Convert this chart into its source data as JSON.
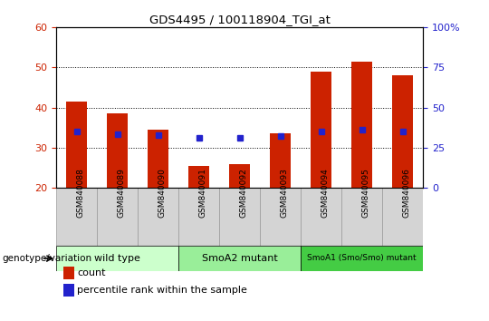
{
  "title": "GDS4495 / 100118904_TGI_at",
  "samples": [
    "GSM840088",
    "GSM840089",
    "GSM840090",
    "GSM840091",
    "GSM840092",
    "GSM840093",
    "GSM840094",
    "GSM840095",
    "GSM840096"
  ],
  "counts": [
    41.5,
    38.5,
    34.5,
    25.5,
    26.0,
    33.5,
    49.0,
    51.5,
    48.0
  ],
  "percentile_ranks": [
    35.0,
    33.5,
    33.0,
    31.0,
    31.0,
    32.5,
    35.0,
    36.0,
    35.0
  ],
  "ylim_left": [
    20,
    60
  ],
  "ylim_right": [
    0,
    100
  ],
  "yticks_left": [
    20,
    30,
    40,
    50,
    60
  ],
  "yticks_right": [
    0,
    25,
    50,
    75,
    100
  ],
  "bar_color": "#cc2200",
  "dot_color": "#2222cc",
  "groups": [
    {
      "label": "wild type",
      "indices": [
        0,
        1,
        2
      ],
      "color": "#ccffcc"
    },
    {
      "label": "SmoA2 mutant",
      "indices": [
        3,
        4,
        5
      ],
      "color": "#99ee99"
    },
    {
      "label": "SmoA1 (Smo/Smo) mutant",
      "indices": [
        6,
        7,
        8
      ],
      "color": "#44cc44"
    }
  ],
  "group_label": "genotype/variation",
  "legend_count": "count",
  "legend_percentile": "percentile rank within the sample",
  "bar_width": 0.5,
  "base_value": 20,
  "tick_label_gray": "#cccccc",
  "spine_color": "#000000"
}
